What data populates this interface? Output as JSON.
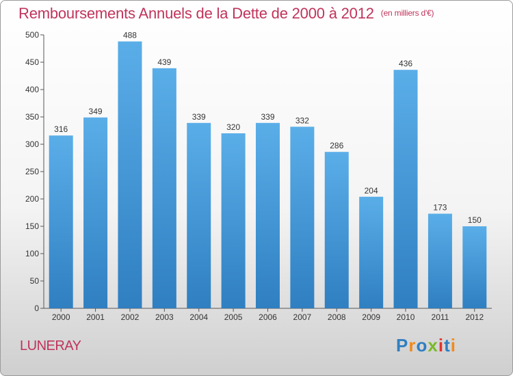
{
  "chart_data": {
    "type": "bar",
    "title": "Remboursements Annuels de la Dette de 2000 à 2012",
    "subtitle": "(en milliers d'€)",
    "xlabel": "",
    "ylabel": "",
    "categories": [
      "2000",
      "2001",
      "2002",
      "2003",
      "2004",
      "2005",
      "2006",
      "2007",
      "2008",
      "2009",
      "2010",
      "2011",
      "2012"
    ],
    "values": [
      316,
      349,
      488,
      439,
      339,
      320,
      339,
      332,
      286,
      204,
      436,
      173,
      150
    ],
    "ylim": [
      0,
      500
    ],
    "yticks": [
      0,
      50,
      100,
      150,
      200,
      250,
      300,
      350,
      400,
      450,
      500
    ],
    "grid": false,
    "colors": {
      "bar_top": "#5aaee8",
      "bar_bottom": "#2f7fc1",
      "title": "#c0335b"
    }
  },
  "footer": {
    "commune": "LUNERAY",
    "logo_text": "Proxiti",
    "logo_colors": [
      "#2f7fc1",
      "#f08a1d",
      "#2f7fc1",
      "#7ab929",
      "#e6302b",
      "#2f7fc1",
      "#f08a1d"
    ]
  }
}
